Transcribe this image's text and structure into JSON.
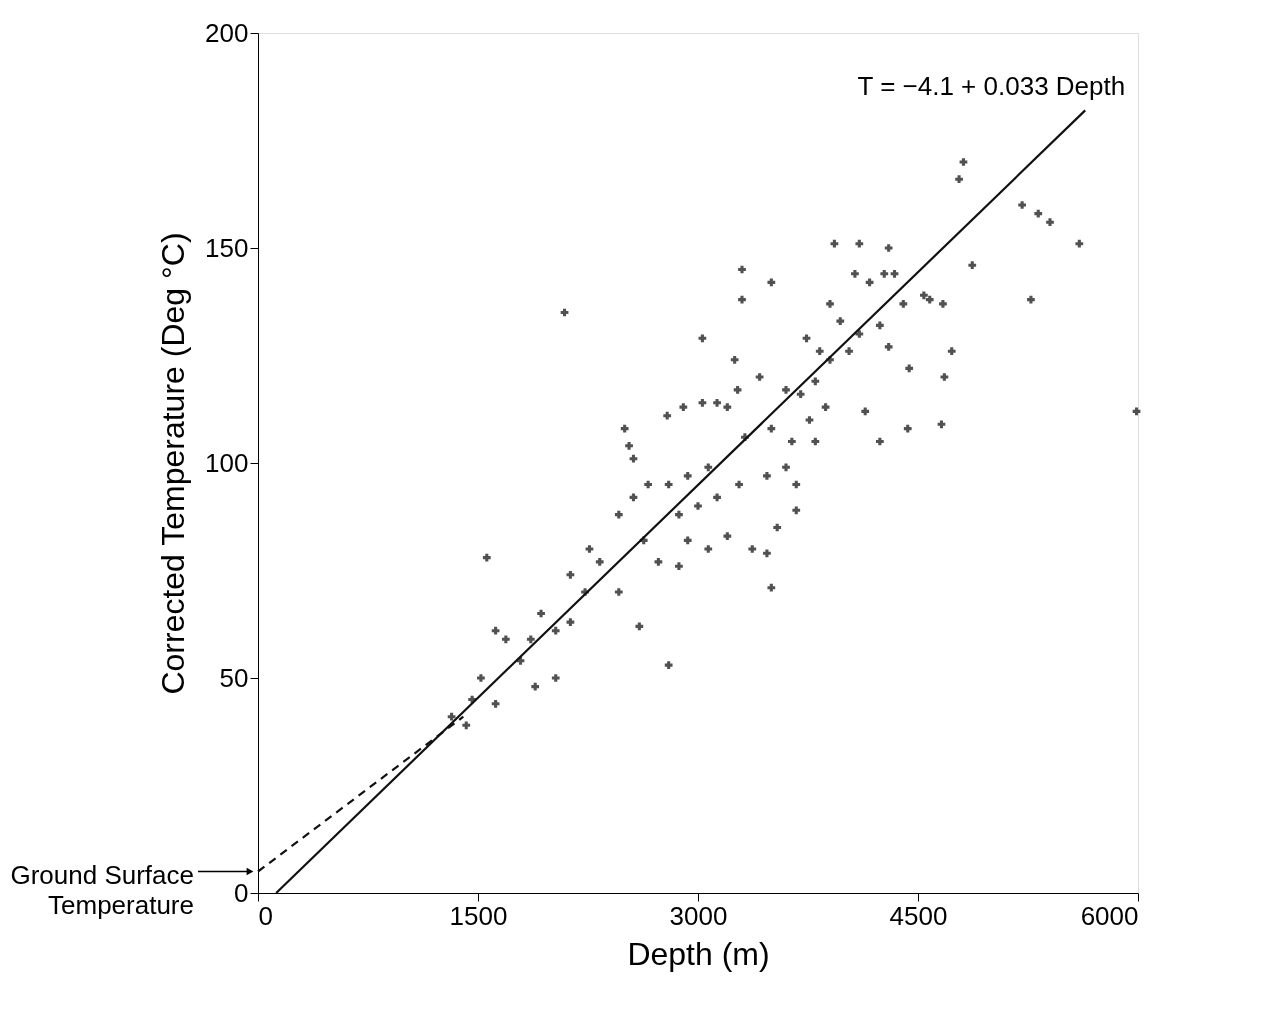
{
  "chart_data": {
    "type": "scatter",
    "xlabel": "Depth (m)",
    "ylabel": "Corrected Temperature (Deg °C)",
    "xlim": [
      0,
      6000
    ],
    "ylim": [
      0,
      200
    ],
    "xticks": [
      0,
      1500,
      3000,
      4500,
      6000
    ],
    "yticks": [
      0,
      50,
      100,
      150,
      200
    ],
    "grid": false,
    "series": [
      {
        "color": "#333333",
        "marker": "cross",
        "x": [
          2090,
          1560,
          4780,
          4810,
          5210,
          5320,
          5400,
          5600,
          5270,
          5990,
          4870,
          4660,
          4430,
          4240,
          4140,
          3870,
          4730,
          4680,
          3300,
          3300,
          3500,
          3030,
          2500,
          2530,
          2560,
          2790,
          2900,
          3030,
          3130,
          3200,
          3250,
          3270,
          3420,
          3500,
          3640,
          3760,
          3800,
          3600,
          3670,
          3470,
          3320,
          3280,
          3130,
          3000,
          2870,
          2930,
          3070,
          3200,
          3370,
          3470,
          3540,
          3670,
          3500,
          2630,
          2730,
          2870,
          2800,
          2600,
          2460,
          2330,
          2230,
          2130,
          2030,
          1930,
          1860,
          2030,
          1890,
          1790,
          1690,
          1620,
          1620,
          1520,
          1460,
          1420,
          1320,
          2130,
          2260,
          2460,
          2560,
          2660,
          2800,
          2930,
          3070,
          4070,
          4170,
          4270,
          4400,
          4540,
          4670,
          3900,
          3970,
          4100,
          4240,
          4300,
          4440,
          4030,
          3900,
          3800,
          3700,
          3600,
          3930,
          4100,
          4300,
          4340,
          3740,
          4580,
          3830
        ],
        "values": [
          135,
          78,
          166,
          170,
          160,
          158,
          156,
          151,
          138,
          112,
          146,
          109,
          108,
          105,
          112,
          113,
          126,
          120,
          145,
          138,
          142,
          129,
          108,
          104,
          101,
          111,
          113,
          114,
          114,
          113,
          124,
          117,
          120,
          108,
          105,
          110,
          105,
          99,
          95,
          97,
          106,
          95,
          92,
          90,
          88,
          82,
          80,
          83,
          80,
          79,
          85,
          89,
          71,
          82,
          77,
          76,
          53,
          62,
          70,
          77,
          70,
          63,
          61,
          65,
          59,
          50,
          48,
          54,
          59,
          61,
          44,
          50,
          45,
          39,
          41,
          74,
          80,
          88,
          92,
          95,
          95,
          97,
          99,
          144,
          142,
          144,
          137,
          139,
          137,
          137,
          133,
          130,
          132,
          127,
          122,
          126,
          124,
          119,
          116,
          117,
          151,
          151,
          150,
          144,
          129,
          138,
          126
        ]
      },
      {
        "type": "line",
        "name": "T = −4.1 + 0.033 Depth",
        "color": "#111111",
        "marker": "none",
        "line_style": "solid",
        "x": [
          124,
          5640
        ],
        "values": [
          0,
          182
        ]
      },
      {
        "type": "line",
        "color": "#111111",
        "marker": "none",
        "line_style": "dashed",
        "x": [
          0,
          1400
        ],
        "values": [
          5,
          41
        ]
      }
    ],
    "annotations": [
      {
        "text": "Ground Surface Temperature",
        "x": 0,
        "y": 5
      }
    ]
  }
}
